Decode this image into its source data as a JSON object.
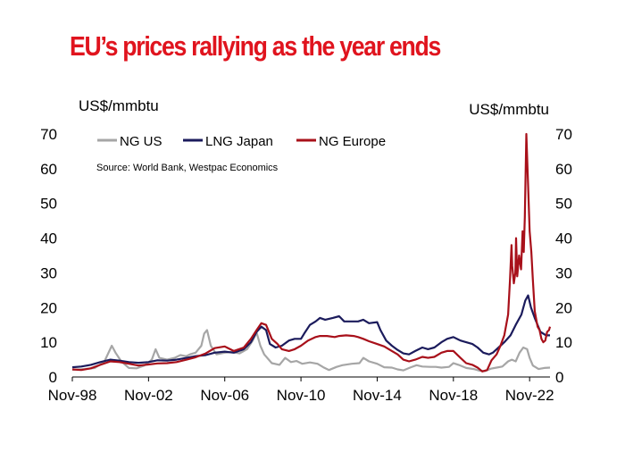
{
  "title": "EU’s prices rallying as the year ends",
  "colors": {
    "title": "#e0141e",
    "ng_us": "#a6a6a6",
    "lng_japan": "#1b1b5c",
    "ng_europe": "#a8101a"
  },
  "chart_data": {
    "type": "line",
    "title": "EU’s prices rallying as the year ends",
    "ylabel_left": "US$/mmbtu",
    "ylabel_right": "US$/mmbtu",
    "source": "Source: World Bank, Westpac Economics",
    "ylim": [
      0,
      70
    ],
    "yticks": [
      0,
      10,
      20,
      30,
      40,
      50,
      60,
      70
    ],
    "xlim": [
      1998.83,
      2023.9
    ],
    "xticks": [
      {
        "label": "Nov-98",
        "x": 1998.83
      },
      {
        "label": "Nov-02",
        "x": 2002.83
      },
      {
        "label": "Nov-06",
        "x": 2006.83
      },
      {
        "label": "Nov-10",
        "x": 2010.83
      },
      {
        "label": "Nov-14",
        "x": 2014.83
      },
      {
        "label": "Nov-18",
        "x": 2018.83
      },
      {
        "label": "Nov-22",
        "x": 2022.83
      }
    ],
    "grid": false,
    "legend_position": "top-left",
    "series": [
      {
        "name": "NG US",
        "color": "#a6a6a6",
        "points": [
          [
            1998.83,
            2.1
          ],
          [
            1999.5,
            2.3
          ],
          [
            2000.0,
            2.6
          ],
          [
            2000.5,
            4.3
          ],
          [
            2000.9,
            9.0
          ],
          [
            2001.1,
            7.0
          ],
          [
            2001.4,
            4.5
          ],
          [
            2001.8,
            2.6
          ],
          [
            2002.2,
            2.5
          ],
          [
            2002.6,
            3.3
          ],
          [
            2003.0,
            5.0
          ],
          [
            2003.2,
            8.0
          ],
          [
            2003.4,
            5.5
          ],
          [
            2003.8,
            5.0
          ],
          [
            2004.2,
            5.5
          ],
          [
            2004.5,
            6.3
          ],
          [
            2004.8,
            6.0
          ],
          [
            2005.0,
            6.5
          ],
          [
            2005.3,
            7.0
          ],
          [
            2005.6,
            9.0
          ],
          [
            2005.75,
            12.5
          ],
          [
            2005.9,
            13.5
          ],
          [
            2006.1,
            9.0
          ],
          [
            2006.4,
            6.5
          ],
          [
            2006.83,
            7.0
          ],
          [
            2007.2,
            7.2
          ],
          [
            2007.6,
            6.8
          ],
          [
            2008.0,
            8.0
          ],
          [
            2008.3,
            10.5
          ],
          [
            2008.5,
            12.8
          ],
          [
            2008.7,
            9.0
          ],
          [
            2008.9,
            6.5
          ],
          [
            2009.3,
            4.0
          ],
          [
            2009.7,
            3.5
          ],
          [
            2010.0,
            5.5
          ],
          [
            2010.3,
            4.3
          ],
          [
            2010.6,
            4.6
          ],
          [
            2010.9,
            3.8
          ],
          [
            2011.3,
            4.2
          ],
          [
            2011.7,
            3.8
          ],
          [
            2012.0,
            2.8
          ],
          [
            2012.3,
            2.0
          ],
          [
            2012.7,
            2.9
          ],
          [
            2013.0,
            3.4
          ],
          [
            2013.5,
            3.8
          ],
          [
            2013.9,
            4.0
          ],
          [
            2014.1,
            5.5
          ],
          [
            2014.4,
            4.5
          ],
          [
            2014.83,
            3.8
          ],
          [
            2015.2,
            2.8
          ],
          [
            2015.6,
            2.7
          ],
          [
            2015.9,
            2.2
          ],
          [
            2016.2,
            1.9
          ],
          [
            2016.6,
            2.8
          ],
          [
            2016.9,
            3.4
          ],
          [
            2017.2,
            3.0
          ],
          [
            2017.6,
            2.9
          ],
          [
            2017.9,
            2.9
          ],
          [
            2018.2,
            2.7
          ],
          [
            2018.6,
            2.9
          ],
          [
            2018.83,
            4.0
          ],
          [
            2019.1,
            3.5
          ],
          [
            2019.5,
            2.6
          ],
          [
            2019.9,
            2.3
          ],
          [
            2020.2,
            1.8
          ],
          [
            2020.5,
            1.7
          ],
          [
            2020.8,
            2.4
          ],
          [
            2021.1,
            2.7
          ],
          [
            2021.4,
            3.0
          ],
          [
            2021.7,
            4.5
          ],
          [
            2021.9,
            5.0
          ],
          [
            2022.1,
            4.5
          ],
          [
            2022.3,
            7.0
          ],
          [
            2022.5,
            8.5
          ],
          [
            2022.7,
            8.0
          ],
          [
            2022.83,
            5.5
          ],
          [
            2023.0,
            3.3
          ],
          [
            2023.3,
            2.3
          ],
          [
            2023.6,
            2.6
          ],
          [
            2023.9,
            2.7
          ]
        ]
      },
      {
        "name": "LNG Japan",
        "color": "#1b1b5c",
        "points": [
          [
            1998.83,
            2.8
          ],
          [
            1999.3,
            3.0
          ],
          [
            1999.8,
            3.5
          ],
          [
            2000.3,
            4.3
          ],
          [
            2000.83,
            5.0
          ],
          [
            2001.3,
            4.7
          ],
          [
            2001.8,
            4.3
          ],
          [
            2002.3,
            4.1
          ],
          [
            2002.83,
            4.3
          ],
          [
            2003.3,
            4.8
          ],
          [
            2003.8,
            4.7
          ],
          [
            2004.3,
            5.0
          ],
          [
            2004.83,
            5.5
          ],
          [
            2005.3,
            6.0
          ],
          [
            2005.83,
            6.3
          ],
          [
            2006.3,
            7.0
          ],
          [
            2006.83,
            7.3
          ],
          [
            2007.3,
            7.0
          ],
          [
            2007.83,
            8.0
          ],
          [
            2008.2,
            10.0
          ],
          [
            2008.5,
            13.0
          ],
          [
            2008.75,
            14.5
          ],
          [
            2009.0,
            13.5
          ],
          [
            2009.2,
            9.5
          ],
          [
            2009.5,
            8.5
          ],
          [
            2009.83,
            9.0
          ],
          [
            2010.2,
            10.5
          ],
          [
            2010.5,
            11.0
          ],
          [
            2010.83,
            11.0
          ],
          [
            2011.0,
            12.5
          ],
          [
            2011.3,
            15.0
          ],
          [
            2011.6,
            16.0
          ],
          [
            2011.83,
            17.0
          ],
          [
            2012.1,
            16.5
          ],
          [
            2012.5,
            17.0
          ],
          [
            2012.83,
            17.5
          ],
          [
            2013.1,
            16.0
          ],
          [
            2013.5,
            16.0
          ],
          [
            2013.83,
            16.0
          ],
          [
            2014.1,
            16.5
          ],
          [
            2014.4,
            15.5
          ],
          [
            2014.83,
            15.8
          ],
          [
            2015.0,
            13.5
          ],
          [
            2015.3,
            10.5
          ],
          [
            2015.6,
            9.0
          ],
          [
            2015.9,
            7.8
          ],
          [
            2016.2,
            6.8
          ],
          [
            2016.5,
            6.5
          ],
          [
            2016.83,
            7.5
          ],
          [
            2017.2,
            8.5
          ],
          [
            2017.5,
            8.0
          ],
          [
            2017.83,
            8.5
          ],
          [
            2018.2,
            10.0
          ],
          [
            2018.5,
            11.0
          ],
          [
            2018.83,
            11.5
          ],
          [
            2019.2,
            10.5
          ],
          [
            2019.5,
            10.0
          ],
          [
            2019.83,
            9.5
          ],
          [
            2020.1,
            8.5
          ],
          [
            2020.4,
            7.0
          ],
          [
            2020.7,
            6.5
          ],
          [
            2020.9,
            7.0
          ],
          [
            2021.2,
            8.5
          ],
          [
            2021.5,
            10.0
          ],
          [
            2021.83,
            12.0
          ],
          [
            2022.1,
            15.0
          ],
          [
            2022.4,
            18.0
          ],
          [
            2022.6,
            22.0
          ],
          [
            2022.75,
            23.5
          ],
          [
            2022.9,
            20.0
          ],
          [
            2023.1,
            17.0
          ],
          [
            2023.4,
            13.0
          ],
          [
            2023.7,
            12.0
          ],
          [
            2023.9,
            12.0
          ]
        ]
      },
      {
        "name": "NG Europe",
        "color": "#a8101a",
        "points": [
          [
            1998.83,
            2.2
          ],
          [
            1999.3,
            2.0
          ],
          [
            1999.8,
            2.5
          ],
          [
            2000.3,
            3.5
          ],
          [
            2000.83,
            4.5
          ],
          [
            2001.3,
            4.3
          ],
          [
            2001.8,
            3.8
          ],
          [
            2002.3,
            3.3
          ],
          [
            2002.83,
            3.6
          ],
          [
            2003.3,
            3.9
          ],
          [
            2003.8,
            4.0
          ],
          [
            2004.3,
            4.3
          ],
          [
            2004.83,
            5.0
          ],
          [
            2005.3,
            5.7
          ],
          [
            2005.83,
            6.8
          ],
          [
            2006.3,
            8.3
          ],
          [
            2006.83,
            8.8
          ],
          [
            2007.3,
            7.5
          ],
          [
            2007.83,
            8.5
          ],
          [
            2008.2,
            11.0
          ],
          [
            2008.5,
            13.5
          ],
          [
            2008.75,
            15.5
          ],
          [
            2009.0,
            15.0
          ],
          [
            2009.3,
            11.0
          ],
          [
            2009.6,
            9.5
          ],
          [
            2009.83,
            8.0
          ],
          [
            2010.2,
            7.5
          ],
          [
            2010.5,
            8.0
          ],
          [
            2010.83,
            9.0
          ],
          [
            2011.2,
            10.5
          ],
          [
            2011.6,
            11.5
          ],
          [
            2011.83,
            11.8
          ],
          [
            2012.2,
            11.8
          ],
          [
            2012.6,
            11.5
          ],
          [
            2012.83,
            11.8
          ],
          [
            2013.2,
            12.0
          ],
          [
            2013.6,
            11.8
          ],
          [
            2013.83,
            11.5
          ],
          [
            2014.1,
            11.0
          ],
          [
            2014.4,
            10.3
          ],
          [
            2014.83,
            9.5
          ],
          [
            2015.2,
            8.8
          ],
          [
            2015.6,
            7.5
          ],
          [
            2015.9,
            6.5
          ],
          [
            2016.2,
            5.0
          ],
          [
            2016.5,
            4.5
          ],
          [
            2016.83,
            5.0
          ],
          [
            2017.2,
            5.8
          ],
          [
            2017.5,
            5.5
          ],
          [
            2017.83,
            5.8
          ],
          [
            2018.2,
            7.0
          ],
          [
            2018.5,
            7.5
          ],
          [
            2018.83,
            7.5
          ],
          [
            2019.2,
            5.5
          ],
          [
            2019.5,
            4.0
          ],
          [
            2019.83,
            3.5
          ],
          [
            2020.1,
            2.7
          ],
          [
            2020.35,
            1.6
          ],
          [
            2020.6,
            2.0
          ],
          [
            2020.83,
            4.8
          ],
          [
            2021.1,
            6.5
          ],
          [
            2021.3,
            9.0
          ],
          [
            2021.5,
            12.0
          ],
          [
            2021.7,
            18.0
          ],
          [
            2021.8,
            28.0
          ],
          [
            2021.88,
            38.0
          ],
          [
            2021.92,
            32.0
          ],
          [
            2022.0,
            27.0
          ],
          [
            2022.08,
            30.0
          ],
          [
            2022.12,
            40.0
          ],
          [
            2022.18,
            29.0
          ],
          [
            2022.28,
            35.0
          ],
          [
            2022.38,
            31.0
          ],
          [
            2022.46,
            42.0
          ],
          [
            2022.52,
            36.0
          ],
          [
            2022.58,
            46.0
          ],
          [
            2022.66,
            70.0
          ],
          [
            2022.75,
            55.0
          ],
          [
            2022.83,
            42.0
          ],
          [
            2022.92,
            36.0
          ],
          [
            2023.0,
            28.0
          ],
          [
            2023.1,
            19.0
          ],
          [
            2023.25,
            14.5
          ],
          [
            2023.35,
            13.5
          ],
          [
            2023.45,
            11.0
          ],
          [
            2023.55,
            10.0
          ],
          [
            2023.65,
            10.5
          ],
          [
            2023.75,
            13.0
          ],
          [
            2023.85,
            13.5
          ],
          [
            2023.9,
            14.5
          ]
        ]
      }
    ]
  }
}
